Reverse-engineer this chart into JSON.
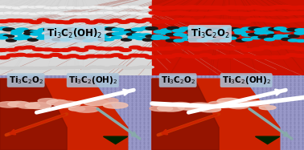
{
  "top_panel": {
    "left_bg": "#d8d8d8",
    "right_bg": "#cc1100",
    "ray_left_color": "#cccccc",
    "ray_right_color": "#bb2200",
    "white_atom_color": "#e8e8e8",
    "red_atom_color": "#dd1100",
    "cyan_atom_color": "#00bbdd",
    "dark_atom_color": "#2a2a2a",
    "label_left": "Ti$_3$C$_2$(OH)$_2$",
    "label_right": "Ti$_3$C$_2$O$_2$",
    "label_bg": "#c0d8e8",
    "label_fontsize": 8.5,
    "label_alpha": 0.85
  },
  "bottom_panel": {
    "bg_color": "#9898c8",
    "dot_color": "#7878a8",
    "red_region_color": "#cc2200",
    "dark_red_color": "#881100",
    "white_crack_color": "#ffffff",
    "debris_color": "#e8a090",
    "white_arrow_color": "#ffffff",
    "red_arrow_color": "#dd2200",
    "gray_arrow_color": "#88aaaa",
    "triangle_color": "#003300",
    "label_bg": "#aac4d8",
    "label_alpha": 0.85,
    "label_fontsize": 7.5,
    "labels": [
      "Ti$_3$C$_2$O$_2$",
      "Ti$_3$C$_2$(OH)$_2$",
      "Ti$_3$C$_2$O$_2$",
      "Ti$_3$C$_2$(OH)$_2$"
    ]
  },
  "divider_color": "#666666"
}
